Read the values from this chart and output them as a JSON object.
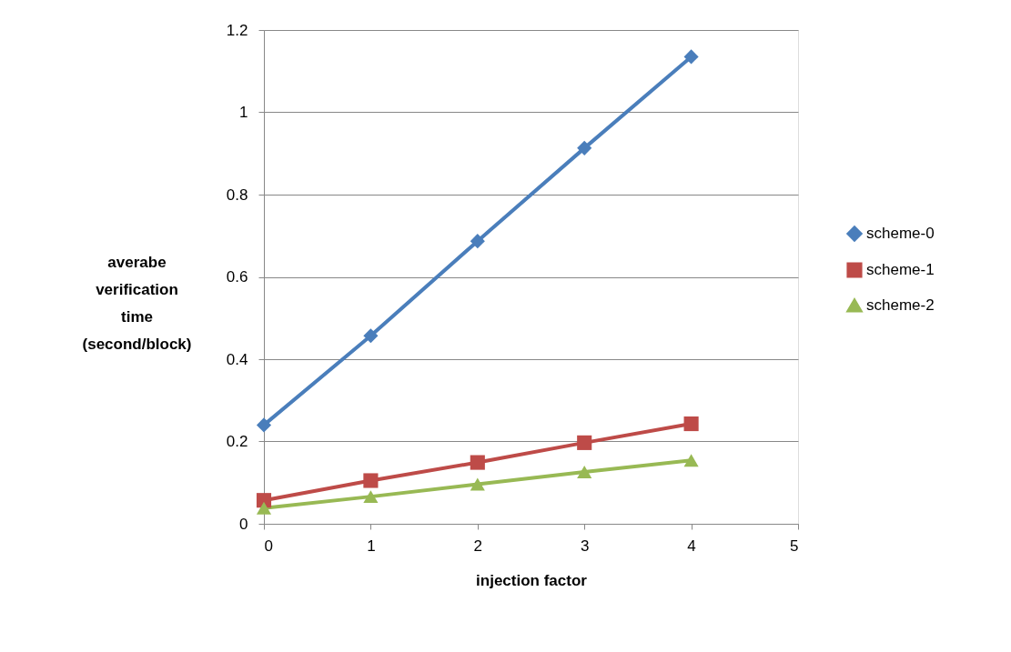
{
  "chart_data": {
    "type": "line",
    "xlabel": "injection factor",
    "ylabel": "averabe verification time (second/block)",
    "x": [
      0,
      1,
      2,
      3,
      4
    ],
    "series": [
      {
        "name": "scheme-0",
        "color": "#4a7ebb",
        "marker": "diamond",
        "values": [
          0.24,
          0.457,
          0.687,
          0.913,
          1.135
        ]
      },
      {
        "name": "scheme-1",
        "color": "#be4b48",
        "marker": "square",
        "values": [
          0.057,
          0.105,
          0.149,
          0.197,
          0.243
        ]
      },
      {
        "name": "scheme-2",
        "color": "#98b954",
        "marker": "triangle",
        "values": [
          0.038,
          0.066,
          0.096,
          0.126,
          0.154
        ]
      }
    ],
    "xlim": [
      0,
      5
    ],
    "xticks": [
      0,
      1,
      2,
      3,
      4,
      5
    ],
    "ylim": [
      0,
      1.2
    ],
    "yticks": [
      0,
      0.2,
      0.4,
      0.6,
      0.8,
      1,
      1.2
    ],
    "grid": "y",
    "legend": "right",
    "line_style": "solid"
  }
}
